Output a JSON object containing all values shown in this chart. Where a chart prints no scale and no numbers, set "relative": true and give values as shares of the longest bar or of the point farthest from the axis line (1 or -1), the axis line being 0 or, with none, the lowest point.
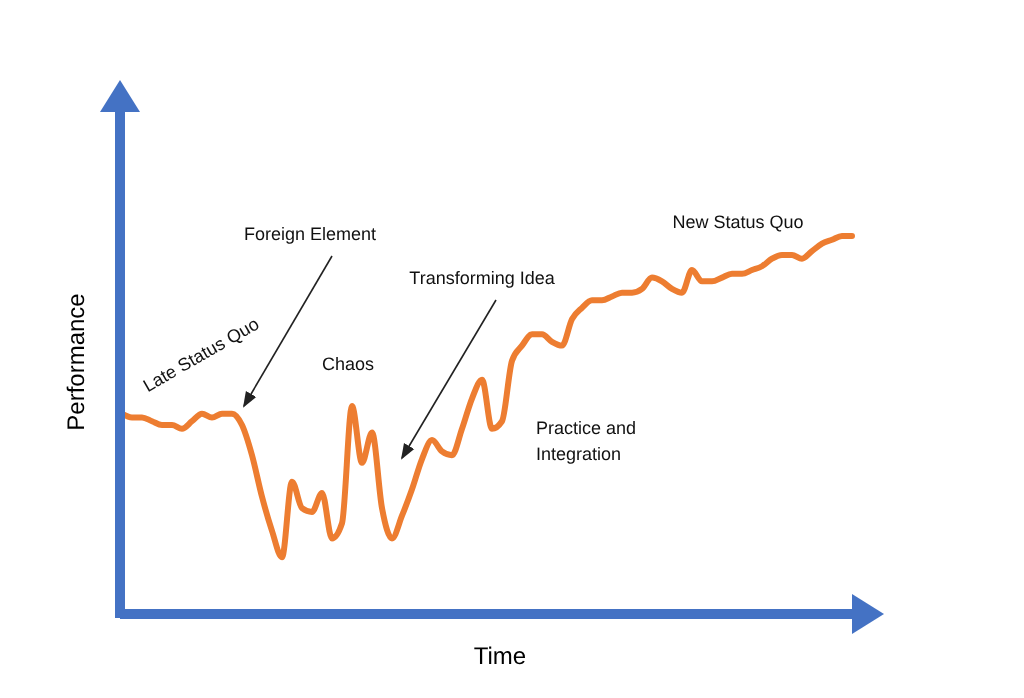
{
  "chart_data": {
    "type": "line",
    "relative": true,
    "xlabel": "Time",
    "ylabel": "Performance",
    "categories": [
      null,
      null,
      null,
      null,
      null,
      null,
      null,
      null,
      null,
      null,
      null,
      null,
      null,
      null,
      null,
      null,
      null,
      null,
      null,
      null,
      null,
      null,
      null,
      null,
      null,
      null,
      null,
      null,
      null,
      null,
      null,
      null,
      null,
      null,
      null,
      null,
      null,
      null,
      null,
      null,
      null,
      null,
      null,
      null,
      null,
      null,
      null,
      null,
      null,
      null,
      null,
      null,
      null,
      null,
      null,
      null,
      null,
      null,
      null,
      null,
      null,
      null,
      null,
      null,
      null,
      null,
      null,
      null,
      null,
      null,
      null,
      null,
      null,
      null
    ],
    "series": [
      {
        "color": "#ed7d31",
        "values": [
          0.53,
          0.52,
          0.52,
          0.51,
          0.5,
          0.5,
          0.49,
          0.51,
          0.53,
          0.52,
          0.53,
          0.53,
          0.5,
          0.42,
          0.31,
          0.22,
          0.15,
          0.35,
          0.28,
          0.27,
          0.32,
          0.2,
          0.24,
          0.55,
          0.4,
          0.48,
          0.28,
          0.2,
          0.26,
          0.33,
          0.41,
          0.46,
          0.43,
          0.42,
          0.49,
          0.57,
          0.62,
          0.49,
          0.51,
          0.67,
          0.71,
          0.74,
          0.74,
          0.72,
          0.71,
          0.78,
          0.81,
          0.83,
          0.83,
          0.84,
          0.85,
          0.85,
          0.86,
          0.89,
          0.88,
          0.86,
          0.85,
          0.91,
          0.88,
          0.88,
          0.89,
          0.9,
          0.9,
          0.91,
          0.92,
          0.94,
          0.95,
          0.95,
          0.94,
          0.96,
          0.98,
          0.99,
          1,
          1
        ]
      }
    ],
    "annotations": [
      "Late Status Quo",
      "Foreign Element",
      "Chaos",
      "Transforming Idea",
      "Practice and Integration",
      "New Status Quo"
    ],
    "marker": "none",
    "line_style": "solid"
  }
}
